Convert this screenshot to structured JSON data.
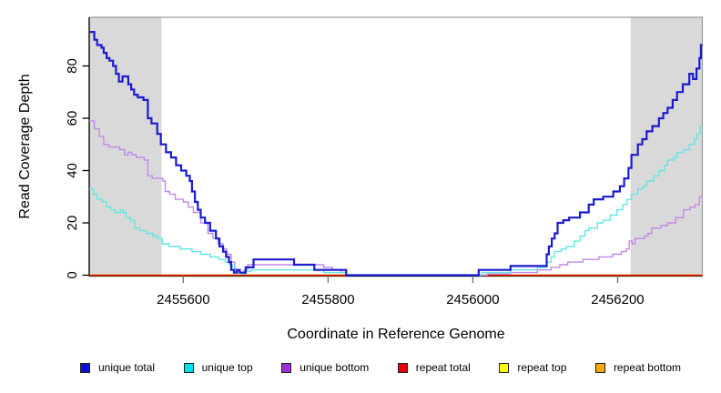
{
  "figure": {
    "xlabel": "Coordinate in Reference Genome",
    "ylabel": "Read Coverage Depth"
  },
  "chart_data": {
    "type": "line",
    "subtype": "step-coverage-plot",
    "title": "",
    "xlabel": "Coordinate in Reference Genome",
    "ylabel": "Read Coverage Depth",
    "xlim": [
      2455470,
      2456317
    ],
    "ylim": [
      0,
      98.6
    ],
    "x_ticks": [
      2455600,
      2455800,
      2456000,
      2456200
    ],
    "y_ticks": [
      0,
      20,
      40,
      60,
      80
    ],
    "grid": false,
    "legend_position": "bottom",
    "shaded_regions": [
      {
        "from": 2455470,
        "to": 2455570,
        "color": "#d9d9d9"
      },
      {
        "from": 2456218,
        "to": 2456317,
        "color": "#d9d9d9"
      }
    ],
    "series": [
      {
        "name": "unique total",
        "color": "#0f0fce",
        "line_color": "#1b1bd0",
        "line_width": 2.2,
        "points": [
          [
            2455470,
            93
          ],
          [
            2455477,
            90
          ],
          [
            2455481,
            88
          ],
          [
            2455487,
            87
          ],
          [
            2455490,
            85
          ],
          [
            2455494,
            83
          ],
          [
            2455498,
            82
          ],
          [
            2455503,
            80
          ],
          [
            2455507,
            77
          ],
          [
            2455511,
            74
          ],
          [
            2455516,
            76
          ],
          [
            2455524,
            73
          ],
          [
            2455528,
            71
          ],
          [
            2455532,
            69
          ],
          [
            2455537,
            68
          ],
          [
            2455545,
            67
          ],
          [
            2455551,
            60
          ],
          [
            2455556,
            58
          ],
          [
            2455564,
            54
          ],
          [
            2455569,
            50
          ],
          [
            2455576,
            47
          ],
          [
            2455583,
            45
          ],
          [
            2455590,
            42
          ],
          [
            2455597,
            40
          ],
          [
            2455604,
            38
          ],
          [
            2455609,
            36
          ],
          [
            2455612,
            32
          ],
          [
            2455616,
            28
          ],
          [
            2455620,
            25
          ],
          [
            2455624,
            22
          ],
          [
            2455630,
            20
          ],
          [
            2455637,
            17
          ],
          [
            2455645,
            14
          ],
          [
            2455650,
            11
          ],
          [
            2455655,
            9
          ],
          [
            2455659,
            7
          ],
          [
            2455663,
            5
          ],
          [
            2455666,
            2
          ],
          [
            2455670,
            1
          ],
          [
            2455674,
            2
          ],
          [
            2455678,
            1
          ],
          [
            2455686,
            3
          ],
          [
            2455697,
            6
          ],
          [
            2455753,
            4
          ],
          [
            2455781,
            2
          ],
          [
            2455825,
            0
          ],
          [
            2456008,
            2
          ],
          [
            2456052,
            3.5
          ],
          [
            2456102,
            8
          ],
          [
            2456105,
            11
          ],
          [
            2456109,
            14
          ],
          [
            2456113,
            16
          ],
          [
            2456117,
            20
          ],
          [
            2456125,
            21
          ],
          [
            2456133,
            22
          ],
          [
            2456148,
            24
          ],
          [
            2456160,
            27
          ],
          [
            2456167,
            29
          ],
          [
            2456180,
            30
          ],
          [
            2456194,
            32
          ],
          [
            2456203,
            34
          ],
          [
            2456209,
            37
          ],
          [
            2456215,
            41
          ],
          [
            2456219,
            46
          ],
          [
            2456228,
            50
          ],
          [
            2456234,
            52
          ],
          [
            2456240,
            55
          ],
          [
            2456248,
            57
          ],
          [
            2456257,
            60
          ],
          [
            2456263,
            62
          ],
          [
            2456269,
            64
          ],
          [
            2456276,
            67
          ],
          [
            2456282,
            70
          ],
          [
            2456290,
            73
          ],
          [
            2456299,
            77
          ],
          [
            2456304,
            75
          ],
          [
            2456309,
            79
          ],
          [
            2456313,
            83
          ],
          [
            2456315,
            88
          ]
        ]
      },
      {
        "name": "unique top",
        "color": "#00e1e8",
        "line_color": "#62e7e2",
        "line_width": 1.4,
        "points": [
          [
            2455470,
            33
          ],
          [
            2455476,
            31
          ],
          [
            2455481,
            29
          ],
          [
            2455488,
            28
          ],
          [
            2455494,
            26
          ],
          [
            2455500,
            25
          ],
          [
            2455506,
            24
          ],
          [
            2455513,
            25
          ],
          [
            2455517,
            24
          ],
          [
            2455521,
            22
          ],
          [
            2455527,
            21
          ],
          [
            2455533,
            18
          ],
          [
            2455540,
            17
          ],
          [
            2455549,
            16
          ],
          [
            2455558,
            15
          ],
          [
            2455565,
            14
          ],
          [
            2455571,
            12
          ],
          [
            2455580,
            11
          ],
          [
            2455596,
            10
          ],
          [
            2455612,
            9
          ],
          [
            2455624,
            8
          ],
          [
            2455637,
            7
          ],
          [
            2455649,
            6
          ],
          [
            2455658,
            5
          ],
          [
            2455664,
            4
          ],
          [
            2455668,
            3
          ],
          [
            2455672,
            1
          ],
          [
            2455680,
            0.5
          ],
          [
            2455687,
            1.5
          ],
          [
            2455694,
            2
          ],
          [
            2455794,
            1
          ],
          [
            2455825,
            0
          ],
          [
            2456012,
            1
          ],
          [
            2456052,
            2
          ],
          [
            2456089,
            3
          ],
          [
            2456102,
            5
          ],
          [
            2456108,
            7
          ],
          [
            2456113,
            9
          ],
          [
            2456122,
            10
          ],
          [
            2456129,
            11
          ],
          [
            2456140,
            13
          ],
          [
            2456148,
            15
          ],
          [
            2456155,
            17
          ],
          [
            2456160,
            18
          ],
          [
            2456172,
            20
          ],
          [
            2456180,
            21
          ],
          [
            2456190,
            23
          ],
          [
            2456199,
            25
          ],
          [
            2456207,
            27
          ],
          [
            2456213,
            29
          ],
          [
            2456219,
            31
          ],
          [
            2456228,
            33
          ],
          [
            2456235,
            34
          ],
          [
            2456240,
            36
          ],
          [
            2456250,
            38
          ],
          [
            2456257,
            40
          ],
          [
            2456265,
            42
          ],
          [
            2456269,
            44
          ],
          [
            2456278,
            45
          ],
          [
            2456282,
            47
          ],
          [
            2456292,
            48
          ],
          [
            2456299,
            50
          ],
          [
            2456306,
            52
          ],
          [
            2456310,
            54
          ],
          [
            2456314,
            57
          ]
        ]
      },
      {
        "name": "unique bottom",
        "color": "#a12be1",
        "line_color": "#c189ea",
        "line_width": 1.4,
        "points": [
          [
            2455470,
            59
          ],
          [
            2455477,
            56
          ],
          [
            2455484,
            53
          ],
          [
            2455490,
            50
          ],
          [
            2455497,
            49
          ],
          [
            2455512,
            48
          ],
          [
            2455519,
            46
          ],
          [
            2455524,
            47
          ],
          [
            2455529,
            46
          ],
          [
            2455535,
            45
          ],
          [
            2455546,
            44
          ],
          [
            2455551,
            38
          ],
          [
            2455557,
            37
          ],
          [
            2455572,
            36
          ],
          [
            2455575,
            32
          ],
          [
            2455581,
            31
          ],
          [
            2455589,
            29
          ],
          [
            2455600,
            28
          ],
          [
            2455607,
            26
          ],
          [
            2455614,
            24
          ],
          [
            2455624,
            20
          ],
          [
            2455634,
            16
          ],
          [
            2455641,
            14
          ],
          [
            2455648,
            12
          ],
          [
            2455655,
            10
          ],
          [
            2455660,
            8
          ],
          [
            2455666,
            5
          ],
          [
            2455671,
            2
          ],
          [
            2455676,
            1
          ],
          [
            2455684,
            2
          ],
          [
            2455689,
            4
          ],
          [
            2455794,
            3
          ],
          [
            2455806,
            2
          ],
          [
            2455818,
            1
          ],
          [
            2455825,
            0
          ],
          [
            2456020,
            0.5
          ],
          [
            2456052,
            1
          ],
          [
            2456089,
            2
          ],
          [
            2456108,
            3
          ],
          [
            2456120,
            4
          ],
          [
            2456131,
            5
          ],
          [
            2456152,
            6
          ],
          [
            2456174,
            7
          ],
          [
            2456193,
            8
          ],
          [
            2456205,
            9
          ],
          [
            2456212,
            10
          ],
          [
            2456216,
            13
          ],
          [
            2456220,
            12
          ],
          [
            2456224,
            14
          ],
          [
            2456237,
            15
          ],
          [
            2456242,
            16
          ],
          [
            2456247,
            18
          ],
          [
            2456260,
            19
          ],
          [
            2456269,
            20
          ],
          [
            2456280,
            22
          ],
          [
            2456291,
            25
          ],
          [
            2456300,
            26
          ],
          [
            2456307,
            27
          ],
          [
            2456313,
            30
          ]
        ]
      },
      {
        "name": "repeat total",
        "color": "#ea0000",
        "line_color": "#ea0000",
        "line_width": 1.2,
        "points": [
          [
            2455470,
            0
          ]
        ]
      },
      {
        "name": "repeat top",
        "color": "#ffff00",
        "line_color": "#ffff00",
        "line_width": 1.2,
        "points": [
          [
            2455470,
            0
          ]
        ]
      },
      {
        "name": "repeat bottom",
        "color": "#ffa500",
        "line_color": "#ffa500",
        "line_width": 1.8,
        "points": [
          [
            2455470,
            0
          ]
        ]
      }
    ]
  }
}
